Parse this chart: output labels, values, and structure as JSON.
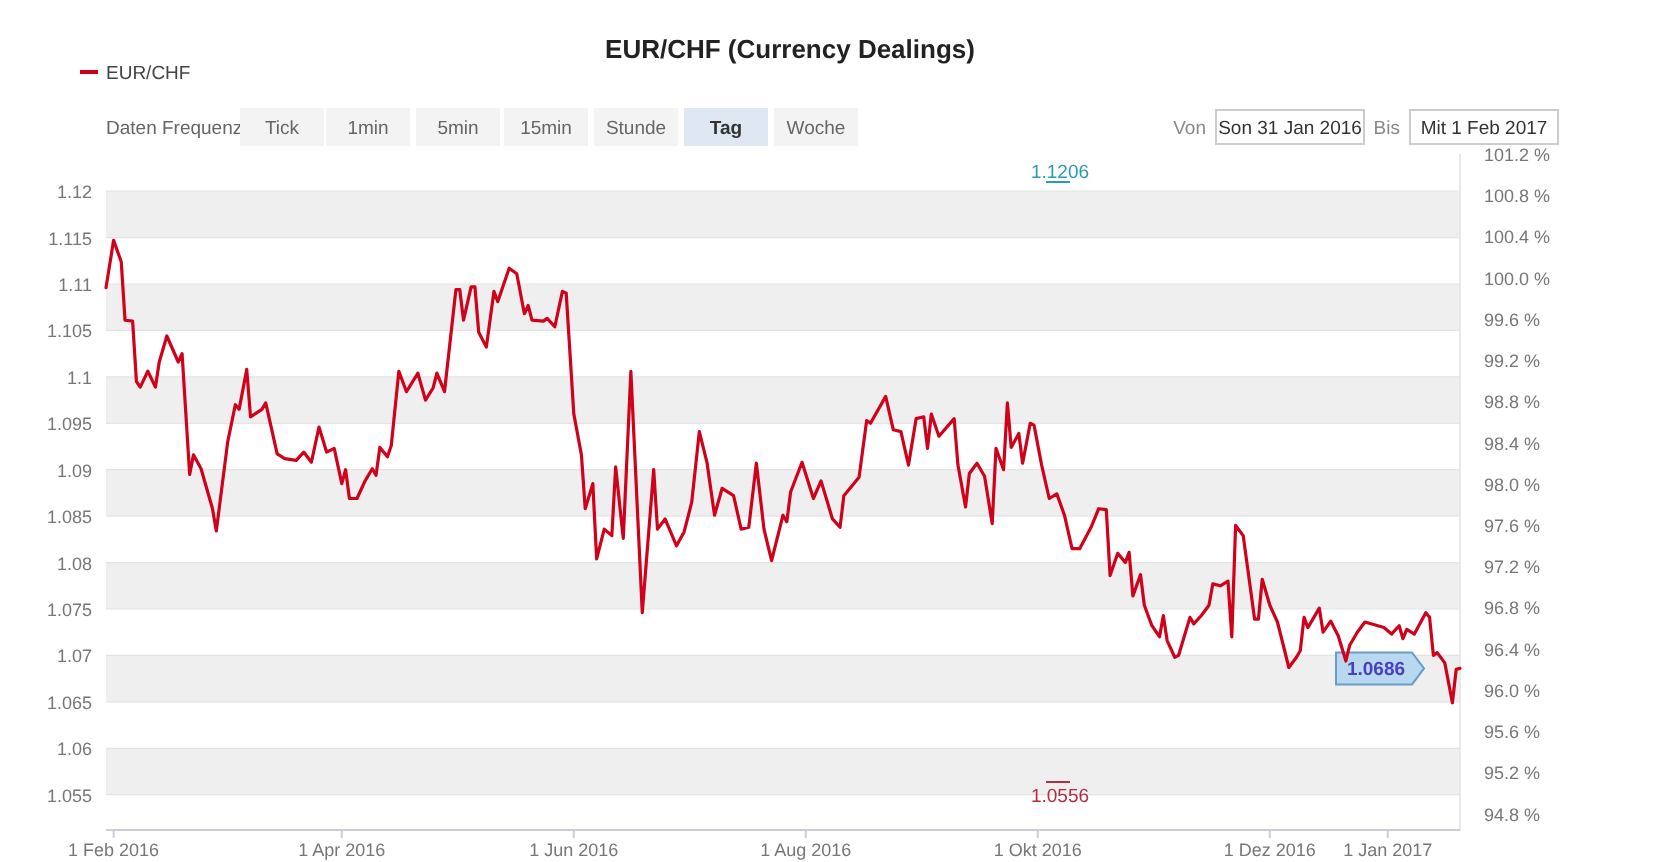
{
  "chart_data": {
    "type": "line",
    "title": "EUR/CHF (Currency Dealings)",
    "x": [
      "2016-01-30",
      "2016-02-01",
      "2016-02-03",
      "2016-02-04",
      "2016-02-06",
      "2016-02-07",
      "2016-02-08",
      "2016-02-10",
      "2016-02-12",
      "2016-02-13",
      "2016-02-15",
      "2016-02-18",
      "2016-02-19",
      "2016-02-21",
      "2016-02-22",
      "2016-02-24",
      "2016-02-27",
      "2016-02-28",
      "2016-03-02",
      "2016-03-04",
      "2016-03-05",
      "2016-03-07",
      "2016-03-08",
      "2016-03-11",
      "2016-03-12",
      "2016-03-15",
      "2016-03-17",
      "2016-03-20",
      "2016-03-22",
      "2016-03-24",
      "2016-03-26",
      "2016-03-28",
      "2016-03-30",
      "2016-04-01",
      "2016-04-02",
      "2016-04-03",
      "2016-04-05",
      "2016-04-07",
      "2016-04-09",
      "2016-04-10",
      "2016-04-11",
      "2016-04-13",
      "2016-04-14",
      "2016-04-16",
      "2016-04-18",
      "2016-04-21",
      "2016-04-23",
      "2016-04-25",
      "2016-04-26",
      "2016-04-28",
      "2016-05-01",
      "2016-05-02",
      "2016-05-03",
      "2016-05-05",
      "2016-05-06",
      "2016-05-07",
      "2016-05-09",
      "2016-05-11",
      "2016-05-12",
      "2016-05-15",
      "2016-05-17",
      "2016-05-19",
      "2016-05-20",
      "2016-05-21",
      "2016-05-24",
      "2016-05-25",
      "2016-05-27",
      "2016-05-29",
      "2016-05-30",
      "2016-06-01",
      "2016-06-03",
      "2016-06-04",
      "2016-06-06",
      "2016-06-07",
      "2016-06-09",
      "2016-06-11",
      "2016-06-12",
      "2016-06-14",
      "2016-06-16",
      "2016-06-19",
      "2016-06-22",
      "2016-06-23",
      "2016-06-25",
      "2016-06-28",
      "2016-06-30",
      "2016-07-02",
      "2016-07-04",
      "2016-07-06",
      "2016-07-08",
      "2016-07-10",
      "2016-07-13",
      "2016-07-15",
      "2016-07-17",
      "2016-07-19",
      "2016-07-21",
      "2016-07-23",
      "2016-07-26",
      "2016-07-27",
      "2016-07-28",
      "2016-07-31",
      "2016-08-03",
      "2016-08-05",
      "2016-08-08",
      "2016-08-10",
      "2016-08-11",
      "2016-08-15",
      "2016-08-17",
      "2016-08-18",
      "2016-08-22",
      "2016-08-24",
      "2016-08-26",
      "2016-08-28",
      "2016-08-30",
      "2016-09-01",
      "2016-09-02",
      "2016-09-03",
      "2016-09-05",
      "2016-09-09",
      "2016-09-10",
      "2016-09-12",
      "2016-09-13",
      "2016-09-15",
      "2016-09-17",
      "2016-09-19",
      "2016-09-20",
      "2016-09-22",
      "2016-09-23",
      "2016-09-24",
      "2016-09-26",
      "2016-09-27",
      "2016-09-29",
      "2016-09-30",
      "2016-10-02",
      "2016-10-04",
      "2016-10-06",
      "2016-10-08",
      "2016-10-10",
      "2016-10-12",
      "2016-10-15",
      "2016-10-17",
      "2016-10-19",
      "2016-10-20",
      "2016-10-22",
      "2016-10-24",
      "2016-10-25",
      "2016-10-26",
      "2016-10-28",
      "2016-10-29",
      "2016-10-31",
      "2016-11-02",
      "2016-11-03",
      "2016-11-04",
      "2016-11-06",
      "2016-11-07",
      "2016-11-10",
      "2016-11-11",
      "2016-11-13",
      "2016-11-15",
      "2016-11-16",
      "2016-11-18",
      "2016-11-20",
      "2016-11-21",
      "2016-11-22",
      "2016-11-24",
      "2016-11-27",
      "2016-11-28",
      "2016-11-29",
      "2016-12-01",
      "2016-12-03",
      "2016-12-06",
      "2016-12-08",
      "2016-12-09",
      "2016-12-10",
      "2016-12-11",
      "2016-12-14",
      "2016-12-15",
      "2016-12-17",
      "2016-12-19",
      "2016-12-21",
      "2016-12-22",
      "2016-12-24",
      "2016-12-26",
      "2016-12-31",
      "2017-01-02",
      "2017-01-04",
      "2017-01-05",
      "2017-01-06",
      "2017-01-08",
      "2017-01-11",
      "2017-01-12",
      "2017-01-13",
      "2017-01-14",
      "2017-01-16",
      "2017-01-18",
      "2017-01-19",
      "2017-01-20"
    ],
    "series": [
      {
        "name": "EUR/CHF",
        "color": "#d0021b",
        "values": [
          1.1096,
          1.1147,
          1.1124,
          1.1061,
          1.106,
          1.0995,
          1.0989,
          1.1006,
          1.0989,
          1.1016,
          1.1044,
          1.1016,
          1.1025,
          1.0895,
          1.0916,
          1.0901,
          1.0858,
          1.0834,
          1.093,
          1.097,
          1.0965,
          1.1008,
          1.0957,
          1.0965,
          1.0972,
          1.0917,
          1.0912,
          1.091,
          1.0919,
          1.0908,
          1.0946,
          1.0919,
          1.0923,
          1.0885,
          1.09,
          1.0869,
          1.0869,
          1.0887,
          1.0901,
          1.0894,
          1.0924,
          1.0914,
          1.0926,
          1.1006,
          1.0984,
          1.1004,
          1.0975,
          1.0988,
          1.1004,
          1.0984,
          1.1094,
          1.1094,
          1.1061,
          1.1097,
          1.1097,
          1.1048,
          1.1032,
          1.1092,
          1.1081,
          1.1117,
          1.1111,
          1.1068,
          1.1077,
          1.1061,
          1.106,
          1.1063,
          1.1054,
          1.1092,
          1.109,
          1.096,
          1.0916,
          1.0858,
          1.0885,
          1.0804,
          1.0836,
          1.0829,
          1.0903,
          1.0826,
          1.1006,
          1.0746,
          1.09,
          1.0836,
          1.0847,
          1.0818,
          1.0833,
          1.0865,
          1.0941,
          1.0908,
          1.0851,
          1.088,
          1.0872,
          1.0836,
          1.0838,
          1.0907,
          1.0836,
          1.0802,
          1.0851,
          1.0844,
          1.0876,
          1.0908,
          1.0869,
          1.0888,
          1.0847,
          1.0838,
          1.0872,
          1.0892,
          1.0953,
          1.095,
          1.0979,
          1.0943,
          1.0941,
          1.0905,
          1.0955,
          1.0957,
          1.0923,
          1.096,
          1.0936,
          1.0955,
          1.0905,
          1.086,
          1.0896,
          1.0907,
          1.0893,
          1.0842,
          1.0923,
          1.09,
          1.0972,
          1.0924,
          1.0939,
          1.0907,
          1.095,
          1.0948,
          1.0905,
          1.0869,
          1.0874,
          1.0851,
          1.0815,
          1.0815,
          1.0838,
          1.0858,
          1.0857,
          1.0786,
          1.081,
          1.08,
          1.0811,
          1.0764,
          1.0787,
          1.0754,
          1.0732,
          1.072,
          1.0743,
          1.0716,
          1.0698,
          1.07,
          1.0741,
          1.0734,
          1.0743,
          1.0754,
          1.0777,
          1.0775,
          1.078,
          1.072,
          1.084,
          1.0829,
          1.0739,
          1.0739,
          1.0782,
          1.0754,
          1.0736,
          1.0687,
          1.0698,
          1.0705,
          1.0741,
          1.073,
          1.0751,
          1.0725,
          1.0737,
          1.0721,
          1.0694,
          1.0711,
          1.0725,
          1.0736,
          1.073,
          1.0723,
          1.0732,
          1.0718,
          1.0728,
          1.0723,
          1.0746,
          1.0741,
          1.07,
          1.0703,
          1.0692,
          1.0649,
          1.0685,
          1.0686
        ]
      }
    ],
    "xlim": [
      "2016-01-30",
      "2017-01-20"
    ],
    "xticks": [
      {
        "value": "2016-02-01",
        "label": "1 Feb 2016"
      },
      {
        "value": "2016-04-01",
        "label": "1 Apr 2016"
      },
      {
        "value": "2016-06-01",
        "label": "1 Jun 2016"
      },
      {
        "value": "2016-08-01",
        "label": "1 Aug 2016"
      },
      {
        "value": "2016-10-01",
        "label": "1 Okt 2016"
      },
      {
        "value": "2016-12-01",
        "label": "1 Dez 2016"
      },
      {
        "value": "2017-01-01",
        "label": "1 Jan 2017"
      }
    ],
    "ylim": [
      1.0512,
      1.124
    ],
    "yticks": [
      1.055,
      1.06,
      1.065,
      1.07,
      1.075,
      1.08,
      1.085,
      1.09,
      1.095,
      1.1,
      1.105,
      1.11,
      1.115,
      1.12
    ],
    "y2lim": [
      94.64,
      101.2
    ],
    "y2ticks": [
      {
        "value": 94.8,
        "label": "94.8 %"
      },
      {
        "value": 95.2,
        "label": "95.2 %"
      },
      {
        "value": 95.6,
        "label": "95.6 %"
      },
      {
        "value": 96.0,
        "label": "96.0 %"
      },
      {
        "value": 96.4,
        "label": "96.4 %"
      },
      {
        "value": 96.8,
        "label": "96.8 %"
      },
      {
        "value": 97.2,
        "label": "97.2 %"
      },
      {
        "value": 97.6,
        "label": "97.6 %"
      },
      {
        "value": 98.0,
        "label": "98.0 %"
      },
      {
        "value": 98.4,
        "label": "98.4 %"
      },
      {
        "value": 98.8,
        "label": "98.8 %"
      },
      {
        "value": 99.2,
        "label": "99.2 %"
      },
      {
        "value": 99.6,
        "label": "99.6 %"
      },
      {
        "value": 100.0,
        "label": "100.0 %"
      },
      {
        "value": 100.4,
        "label": "100.4 %"
      },
      {
        "value": 100.8,
        "label": "100.8 %"
      },
      {
        "value": 101.2,
        "label": "101.2 %"
      }
    ],
    "grid": "y",
    "legend": "top left",
    "annotations": [
      "Daten Frequenz",
      "Tick",
      "1min",
      "5min",
      "15min",
      "Stunde",
      "Tag",
      "Woche",
      "Von",
      "Son 31 Jan 2016",
      "Bis",
      "Mit 1 Feb 2017",
      "1.1206",
      "1.0556",
      {
        "text": "1.0686",
        "x": "2017-01-20",
        "y": 1.0686
      }
    ]
  }
}
